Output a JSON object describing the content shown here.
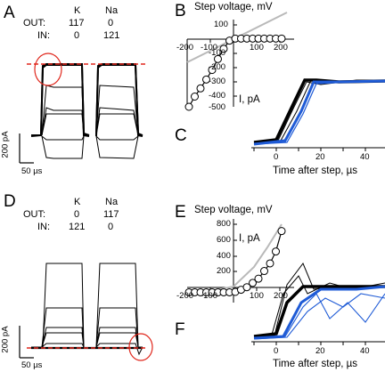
{
  "panels": {
    "A": "A",
    "B": "B",
    "C": "C",
    "D": "D",
    "E": "E",
    "F": "F"
  },
  "table_top": {
    "col1": "K",
    "col2": "Na",
    "row1_label": "OUT:",
    "row1_v1": "117",
    "row1_v2": "0",
    "row2_label": "IN:",
    "row2_v1": "0",
    "row2_v2": "121"
  },
  "table_bottom": {
    "col1": "K",
    "col2": "Na",
    "row1_label": "OUT:",
    "row1_v1": "0",
    "row1_v2": "117",
    "row2_label": "IN:",
    "row2_v1": "121",
    "row2_v2": "0"
  },
  "scale_top": {
    "current": "200 pA",
    "time": "50 µs"
  },
  "scale_bottom": {
    "current": "200 pA",
    "time": "50 µs"
  },
  "chart_B": {
    "title": "Step voltage, mV",
    "ylabel": "I, pA",
    "xticks": [
      "-200",
      "-100",
      "100",
      "200"
    ],
    "yticks": [
      "100",
      "0",
      "-100",
      "-200",
      "-300",
      "-400",
      "-500"
    ]
  },
  "chart_C": {
    "xlabel": "Time after step, µs",
    "xticks": [
      "0",
      "20",
      "40"
    ]
  },
  "chart_E": {
    "title": "Step voltage, mV",
    "ylabel": "I, pA",
    "xticks": [
      "-200",
      "-100",
      "100",
      "200"
    ],
    "yticks": [
      "800",
      "600",
      "400",
      "200"
    ]
  },
  "chart_F": {
    "xlabel": "Time after step, µs",
    "xticks": [
      "0",
      "20",
      "40"
    ]
  },
  "colors": {
    "blue": "#1f5bd6",
    "red": "#e0261b",
    "gray": "#b9b9b9"
  },
  "chart_data": [
    {
      "type": "scatter",
      "title": "Step voltage, mV",
      "xlabel": "Step voltage, mV",
      "ylabel": "I, pA",
      "xlim": [
        -200,
        200
      ],
      "ylim": [
        -500,
        100
      ],
      "series": [
        {
          "x": [
            -200,
            -175,
            -150,
            -125,
            -100,
            -75,
            -50,
            -25,
            0,
            25,
            50,
            75,
            100,
            125,
            150,
            175,
            200
          ],
          "y": [
            -500,
            -425,
            -365,
            -300,
            -230,
            -150,
            -75,
            -15,
            0,
            0,
            0,
            0,
            0,
            0,
            0,
            0,
            0
          ]
        }
      ],
      "reference_curve_x": [
        -200,
        200
      ],
      "reference_curve_y": [
        -115,
        80
      ]
    },
    {
      "type": "line",
      "xlabel": "Time after step, µs",
      "xlim": [
        -10,
        50
      ],
      "series": [
        {
          "color": "black",
          "x": [
            -10,
            0,
            5,
            10,
            15,
            20,
            30,
            40,
            50
          ],
          "y": [
            0,
            0.02,
            0.3,
            0.85,
            1.02,
            0.98,
            1.0,
            1.0,
            1.0
          ]
        },
        {
          "color": "blue",
          "x": [
            -10,
            0,
            5,
            10,
            15,
            20,
            30,
            40,
            50
          ],
          "y": [
            0,
            0.01,
            0.1,
            0.45,
            0.85,
            0.97,
            1.0,
            1.0,
            1.0
          ]
        }
      ]
    },
    {
      "type": "scatter",
      "title": "Step voltage, mV",
      "xlabel": "Step voltage, mV",
      "ylabel": "I, pA",
      "xlim": [
        -200,
        200
      ],
      "ylim": [
        -100,
        800
      ],
      "series": [
        {
          "x": [
            -200,
            -175,
            -150,
            -125,
            -100,
            -75,
            -50,
            -25,
            0,
            25,
            50,
            75,
            100,
            125,
            150,
            175,
            200
          ],
          "y": [
            0,
            0,
            0,
            0,
            0,
            0,
            0,
            0,
            5,
            30,
            60,
            110,
            160,
            250,
            340,
            480,
            720
          ]
        }
      ],
      "reference_curve_x": [
        -200,
        200
      ],
      "reference_curve_y": [
        -90,
        650
      ]
    },
    {
      "type": "line",
      "xlabel": "Time after step, µs",
      "xlim": [
        -10,
        50
      ],
      "series": [
        {
          "color": "black",
          "x": [
            -10,
            0,
            5,
            10,
            15,
            20,
            30,
            40,
            50
          ],
          "y": [
            0,
            0.05,
            0.5,
            1.0,
            1.35,
            0.95,
            1.0,
            1.0,
            1.0
          ]
        },
        {
          "color": "blue",
          "x": [
            -10,
            0,
            5,
            10,
            15,
            20,
            30,
            40,
            50
          ],
          "y": [
            0,
            0.02,
            0.2,
            0.6,
            0.85,
            0.95,
            0.95,
            0.9,
            0.9
          ]
        }
      ]
    }
  ]
}
